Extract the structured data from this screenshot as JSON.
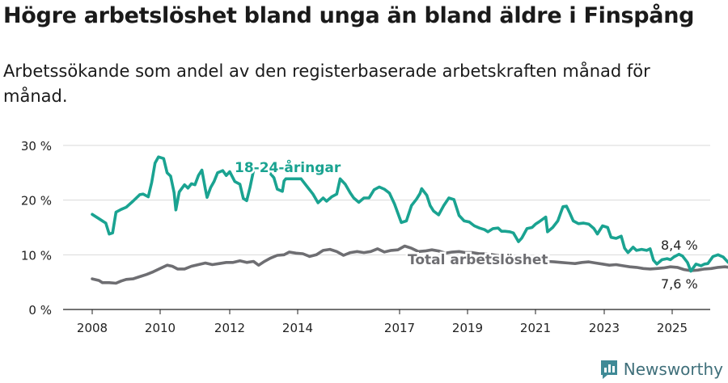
{
  "title": "Högre arbetslöshet bland unga än bland äldre i Finspång",
  "subtitle": "Arbetssökande som andel av den registerbaserade arbetskraften månad för månad.",
  "brand": "Newsworthy",
  "colors": {
    "youth": "#1aa391",
    "total": "#6e6e72",
    "grid": "#d9d9d9",
    "axis": "#222222"
  },
  "chart_data": {
    "type": "line",
    "title": "Högre arbetslöshet bland unga än bland äldre i Finspång",
    "subtitle": "Arbetssökande som andel av den registerbaserade arbetskraften månad för månad.",
    "xlabel": "",
    "ylabel": "",
    "x_ticks": [
      "2008",
      "2010",
      "2012",
      "2014",
      "2017",
      "2019",
      "2021",
      "2023",
      "2025"
    ],
    "x_tick_values": [
      2008,
      2010,
      2012,
      2014,
      2017,
      2019,
      2021,
      2023,
      2025
    ],
    "y_ticks": [
      "0 %",
      "10 %",
      "20 %",
      "30 %"
    ],
    "y_tick_values": [
      0,
      10,
      20,
      30
    ],
    "xlim": [
      2007.1,
      2026.0
    ],
    "ylim": [
      0,
      30
    ],
    "grid": true,
    "series": [
      {
        "name": "18-24-åringar",
        "color": "#1aa391",
        "label": "18-24-åringar",
        "end_label": "8,4 %",
        "points": [
          [
            2008.0,
            17.4
          ],
          [
            2008.2,
            16.6
          ],
          [
            2008.4,
            15.8
          ],
          [
            2008.5,
            13.8
          ],
          [
            2008.6,
            14.0
          ],
          [
            2008.7,
            17.8
          ],
          [
            2008.85,
            18.3
          ],
          [
            2009.0,
            18.7
          ],
          [
            2009.2,
            19.8
          ],
          [
            2009.4,
            21.0
          ],
          [
            2009.5,
            21.1
          ],
          [
            2009.65,
            20.6
          ],
          [
            2009.75,
            23.2
          ],
          [
            2009.85,
            26.8
          ],
          [
            2009.95,
            27.9
          ],
          [
            2010.1,
            27.6
          ],
          [
            2010.2,
            25.0
          ],
          [
            2010.3,
            24.4
          ],
          [
            2010.4,
            21.4
          ],
          [
            2010.45,
            18.2
          ],
          [
            2010.55,
            21.5
          ],
          [
            2010.7,
            22.8
          ],
          [
            2010.8,
            22.2
          ],
          [
            2010.9,
            23.0
          ],
          [
            2011.0,
            22.8
          ],
          [
            2011.1,
            24.5
          ],
          [
            2011.2,
            25.5
          ],
          [
            2011.3,
            22.0
          ],
          [
            2011.35,
            20.5
          ],
          [
            2011.45,
            22.3
          ],
          [
            2011.55,
            23.4
          ],
          [
            2011.65,
            25.0
          ],
          [
            2011.8,
            25.4
          ],
          [
            2011.9,
            24.5
          ],
          [
            2012.0,
            25.2
          ],
          [
            2012.15,
            23.4
          ],
          [
            2012.3,
            22.9
          ],
          [
            2012.4,
            20.3
          ],
          [
            2012.5,
            19.9
          ],
          [
            2012.6,
            22.4
          ],
          [
            2012.7,
            25.4
          ],
          [
            2013.15,
            25.2
          ],
          [
            2013.3,
            24.1
          ],
          [
            2013.4,
            22.0
          ],
          [
            2013.55,
            21.6
          ],
          [
            2013.6,
            23.5
          ],
          [
            2013.65,
            23.9
          ],
          [
            2014.1,
            23.9
          ],
          [
            2014.3,
            22.3
          ],
          [
            2014.45,
            21.1
          ],
          [
            2014.6,
            19.5
          ],
          [
            2014.75,
            20.4
          ],
          [
            2014.85,
            19.8
          ],
          [
            2015.0,
            20.6
          ],
          [
            2015.15,
            21.1
          ],
          [
            2015.25,
            23.9
          ],
          [
            2015.4,
            22.9
          ],
          [
            2015.55,
            21.3
          ],
          [
            2015.65,
            20.4
          ],
          [
            2015.8,
            19.6
          ],
          [
            2015.95,
            20.4
          ],
          [
            2016.1,
            20.4
          ],
          [
            2016.25,
            21.9
          ],
          [
            2016.4,
            22.4
          ],
          [
            2016.55,
            22.0
          ],
          [
            2016.7,
            21.3
          ],
          [
            2016.85,
            19.3
          ],
          [
            2016.95,
            17.6
          ],
          [
            2017.05,
            15.9
          ],
          [
            2017.2,
            16.2
          ],
          [
            2017.35,
            19.0
          ],
          [
            2017.5,
            20.2
          ],
          [
            2017.6,
            21.2
          ],
          [
            2017.65,
            22.1
          ],
          [
            2017.8,
            20.9
          ],
          [
            2017.9,
            19.0
          ],
          [
            2018.0,
            18.0
          ],
          [
            2018.15,
            17.3
          ],
          [
            2018.3,
            19.0
          ],
          [
            2018.45,
            20.4
          ],
          [
            2018.6,
            20.1
          ],
          [
            2018.75,
            17.2
          ],
          [
            2018.9,
            16.2
          ],
          [
            2019.05,
            16.0
          ],
          [
            2019.2,
            15.3
          ],
          [
            2019.35,
            14.9
          ],
          [
            2019.5,
            14.6
          ],
          [
            2019.6,
            14.2
          ],
          [
            2019.75,
            14.8
          ],
          [
            2019.9,
            14.9
          ],
          [
            2020.0,
            14.3
          ],
          [
            2020.1,
            14.3
          ],
          [
            2020.25,
            14.2
          ],
          [
            2020.35,
            14.0
          ],
          [
            2020.5,
            12.4
          ],
          [
            2020.6,
            13.1
          ],
          [
            2020.75,
            14.8
          ],
          [
            2020.9,
            15.0
          ],
          [
            2021.0,
            15.6
          ],
          [
            2021.1,
            16.0
          ],
          [
            2021.3,
            16.9
          ],
          [
            2021.35,
            14.2
          ],
          [
            2021.5,
            15.0
          ],
          [
            2021.65,
            16.2
          ],
          [
            2021.8,
            18.8
          ],
          [
            2021.9,
            18.9
          ],
          [
            2022.0,
            17.6
          ],
          [
            2022.1,
            16.2
          ],
          [
            2022.25,
            15.7
          ],
          [
            2022.4,
            15.8
          ],
          [
            2022.55,
            15.6
          ],
          [
            2022.7,
            14.8
          ],
          [
            2022.8,
            13.8
          ],
          [
            2022.95,
            15.3
          ],
          [
            2023.1,
            15.0
          ],
          [
            2023.2,
            13.2
          ],
          [
            2023.35,
            13.0
          ],
          [
            2023.5,
            13.4
          ],
          [
            2023.6,
            11.2
          ],
          [
            2023.7,
            10.4
          ],
          [
            2023.85,
            11.4
          ],
          [
            2023.95,
            10.8
          ],
          [
            2024.1,
            11.0
          ],
          [
            2024.25,
            10.8
          ],
          [
            2024.35,
            11.1
          ],
          [
            2024.45,
            9.0
          ],
          [
            2024.55,
            8.3
          ],
          [
            2024.7,
            9.1
          ],
          [
            2024.85,
            9.3
          ],
          [
            2024.95,
            9.1
          ],
          [
            2025.05,
            9.6
          ],
          [
            2025.2,
            10.1
          ],
          [
            2025.3,
            9.8
          ],
          [
            2025.45,
            8.6
          ],
          [
            2025.55,
            7.0
          ],
          [
            2025.7,
            8.3
          ],
          [
            2025.85,
            8.0
          ],
          [
            2025.95,
            8.3
          ],
          [
            2026.05,
            8.4
          ],
          [
            2026.2,
            9.7
          ],
          [
            2026.35,
            10.0
          ],
          [
            2026.5,
            9.6
          ],
          [
            2026.65,
            8.6
          ],
          [
            2026.8,
            8.4
          ]
        ]
      },
      {
        "name": "Total arbetslöshet",
        "color": "#6e6e72",
        "label": "Total arbetslöshet",
        "end_label": "7,6 %",
        "points": [
          [
            2008.0,
            5.6
          ],
          [
            2008.2,
            5.3
          ],
          [
            2008.3,
            4.9
          ],
          [
            2008.5,
            4.9
          ],
          [
            2008.7,
            4.8
          ],
          [
            2008.85,
            5.2
          ],
          [
            2009.0,
            5.5
          ],
          [
            2009.2,
            5.6
          ],
          [
            2009.4,
            6.0
          ],
          [
            2009.6,
            6.4
          ],
          [
            2009.8,
            6.9
          ],
          [
            2010.0,
            7.5
          ],
          [
            2010.2,
            8.1
          ],
          [
            2010.35,
            7.9
          ],
          [
            2010.5,
            7.4
          ],
          [
            2010.7,
            7.4
          ],
          [
            2010.9,
            7.9
          ],
          [
            2011.1,
            8.2
          ],
          [
            2011.3,
            8.5
          ],
          [
            2011.5,
            8.2
          ],
          [
            2011.7,
            8.4
          ],
          [
            2011.9,
            8.6
          ],
          [
            2012.1,
            8.6
          ],
          [
            2012.3,
            8.9
          ],
          [
            2012.5,
            8.6
          ],
          [
            2012.7,
            8.8
          ],
          [
            2012.85,
            8.1
          ],
          [
            2013.0,
            8.7
          ],
          [
            2013.2,
            9.4
          ],
          [
            2013.4,
            9.9
          ],
          [
            2013.6,
            10.0
          ],
          [
            2013.75,
            10.5
          ],
          [
            2013.95,
            10.3
          ],
          [
            2014.15,
            10.2
          ],
          [
            2014.35,
            9.7
          ],
          [
            2014.55,
            10.0
          ],
          [
            2014.75,
            10.8
          ],
          [
            2014.95,
            11.0
          ],
          [
            2015.15,
            10.6
          ],
          [
            2015.35,
            9.9
          ],
          [
            2015.55,
            10.4
          ],
          [
            2015.75,
            10.6
          ],
          [
            2015.95,
            10.4
          ],
          [
            2016.15,
            10.6
          ],
          [
            2016.35,
            11.1
          ],
          [
            2016.55,
            10.5
          ],
          [
            2016.75,
            10.8
          ],
          [
            2016.95,
            10.9
          ],
          [
            2017.15,
            11.6
          ],
          [
            2017.35,
            11.2
          ],
          [
            2017.55,
            10.6
          ],
          [
            2017.75,
            10.7
          ],
          [
            2017.95,
            10.9
          ],
          [
            2018.15,
            10.7
          ],
          [
            2018.35,
            10.3
          ],
          [
            2018.55,
            10.5
          ],
          [
            2018.75,
            10.6
          ],
          [
            2018.95,
            10.4
          ],
          [
            2019.15,
            10.4
          ],
          [
            2019.35,
            10.2
          ],
          [
            2019.55,
            10.2
          ],
          [
            2019.75,
            10.0
          ],
          [
            2019.95,
            9.8
          ],
          [
            2020.15,
            9.7
          ],
          [
            2020.35,
            9.5
          ],
          [
            2020.55,
            9.3
          ],
          [
            2020.75,
            9.2
          ],
          [
            2020.95,
            9.1
          ],
          [
            2021.15,
            9.0
          ],
          [
            2021.35,
            8.8
          ],
          [
            2021.55,
            8.7
          ],
          [
            2021.75,
            8.6
          ],
          [
            2021.95,
            8.5
          ],
          [
            2022.15,
            8.4
          ],
          [
            2022.35,
            8.6
          ],
          [
            2022.55,
            8.7
          ],
          [
            2022.75,
            8.5
          ],
          [
            2022.95,
            8.3
          ],
          [
            2023.15,
            8.1
          ],
          [
            2023.35,
            8.2
          ],
          [
            2023.55,
            8.0
          ],
          [
            2023.75,
            7.8
          ],
          [
            2023.95,
            7.7
          ],
          [
            2024.15,
            7.5
          ],
          [
            2024.35,
            7.4
          ],
          [
            2024.55,
            7.5
          ],
          [
            2024.75,
            7.6
          ],
          [
            2024.95,
            7.8
          ],
          [
            2025.15,
            7.7
          ],
          [
            2025.35,
            7.3
          ],
          [
            2025.55,
            7.1
          ],
          [
            2025.75,
            7.2
          ],
          [
            2025.95,
            7.4
          ],
          [
            2026.15,
            7.5
          ],
          [
            2026.35,
            7.7
          ],
          [
            2026.55,
            7.8
          ],
          [
            2026.8,
            7.6
          ]
        ]
      }
    ]
  }
}
